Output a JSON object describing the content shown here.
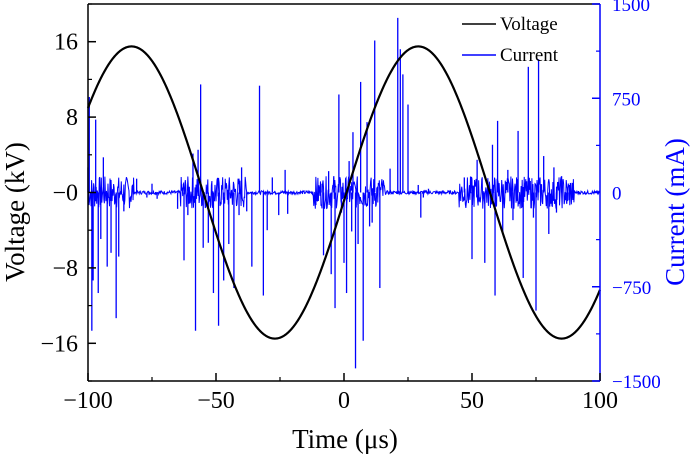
{
  "chart_data": {
    "type": "line",
    "xlabel": "Time (μs)",
    "ylabel_left": "Voltage (kV)",
    "ylabel_right": "Current (mA)",
    "xlim": [
      -100,
      100
    ],
    "ylim_left": [
      -20,
      20
    ],
    "ylim_right": [
      -1500,
      1500
    ],
    "x_ticks": [
      -100,
      -50,
      0,
      50,
      100
    ],
    "x_tick_labels": [
      "−100",
      "−50",
      "0",
      "50",
      "100"
    ],
    "y_left_ticks": [
      16,
      8,
      0,
      -8,
      -16
    ],
    "y_left_tick_labels": [
      "16",
      "8",
      "−0",
      "−8",
      "−16"
    ],
    "y_right_ticks": [
      1500,
      750,
      0,
      -750,
      -1500
    ],
    "y_right_tick_labels": [
      "1500",
      "750",
      "0",
      "−750",
      "−1500"
    ],
    "legend_position": "top-right",
    "grid": false,
    "colors": {
      "voltage": "#000000",
      "current": "#0000ff",
      "axes": "#000000",
      "right_axis": "#0000ff"
    },
    "series": [
      {
        "name": "Voltage",
        "axis": "left",
        "color": "#000000",
        "waveform": "sine",
        "amplitude_kV": 15.5,
        "period_us": 112,
        "peak_time_us": -83,
        "x": [
          -100,
          -83,
          -55,
          -27,
          0,
          29,
          56,
          84,
          100
        ],
        "values": [
          9,
          15.5,
          0,
          -15.5,
          -1,
          15.5,
          0,
          -15.5,
          -9.5
        ]
      },
      {
        "name": "Current",
        "axis": "right",
        "color": "#0000ff",
        "x": [
          -100,
          -99.5,
          -98.5,
          -98,
          -97,
          -96,
          -95,
          -94,
          -92.5,
          -91,
          -89,
          -88,
          -86,
          -81,
          -77,
          -75,
          -73,
          -65,
          -62.5,
          -61,
          -59,
          -58,
          -57,
          -56,
          -55,
          -53,
          -51,
          -49,
          -47,
          -45,
          -43,
          -41,
          -40,
          -38,
          -36,
          -33,
          -31.5,
          -30,
          -28,
          -25.5,
          -23,
          -22,
          -11,
          -9,
          -8,
          -6,
          -5,
          -4,
          -3.5,
          -2,
          -1,
          0,
          1,
          2,
          3,
          3.5,
          4.5,
          5.5,
          6.5,
          7.5,
          9,
          10,
          11,
          12,
          14,
          18,
          21,
          22,
          23,
          25,
          29,
          30,
          31,
          33,
          45,
          47,
          50,
          52,
          55,
          58,
          59,
          60,
          62,
          64,
          66,
          68,
          70,
          72,
          74,
          75,
          76,
          78,
          80,
          82,
          83,
          85,
          87,
          88
        ],
        "values": [
          200,
          760,
          -1100,
          -700,
          580,
          -800,
          -370,
          280,
          -590,
          -480,
          -1000,
          -510,
          -150,
          110,
          -40,
          70,
          -50,
          -130,
          -540,
          -180,
          310,
          -1100,
          340,
          860,
          -440,
          -400,
          -800,
          -1060,
          -700,
          -410,
          -760,
          -180,
          200,
          -150,
          -590,
          850,
          -820,
          -300,
          120,
          -180,
          180,
          -170,
          -100,
          70,
          -500,
          170,
          -650,
          130,
          -920,
          780,
          -160,
          -560,
          -800,
          250,
          -310,
          480,
          -1400,
          -410,
          880,
          -1180,
          560,
          -270,
          -240,
          1210,
          -760,
          190,
          1390,
          1140,
          940,
          700,
          60,
          -200,
          -40,
          30,
          -70,
          120,
          -530,
          260,
          -560,
          380,
          -820,
          570,
          -320,
          180,
          -220,
          490,
          -680,
          1000,
          -200,
          -940,
          1060,
          290,
          -330,
          200,
          -160,
          130,
          -90,
          -60
        ]
      }
    ]
  }
}
